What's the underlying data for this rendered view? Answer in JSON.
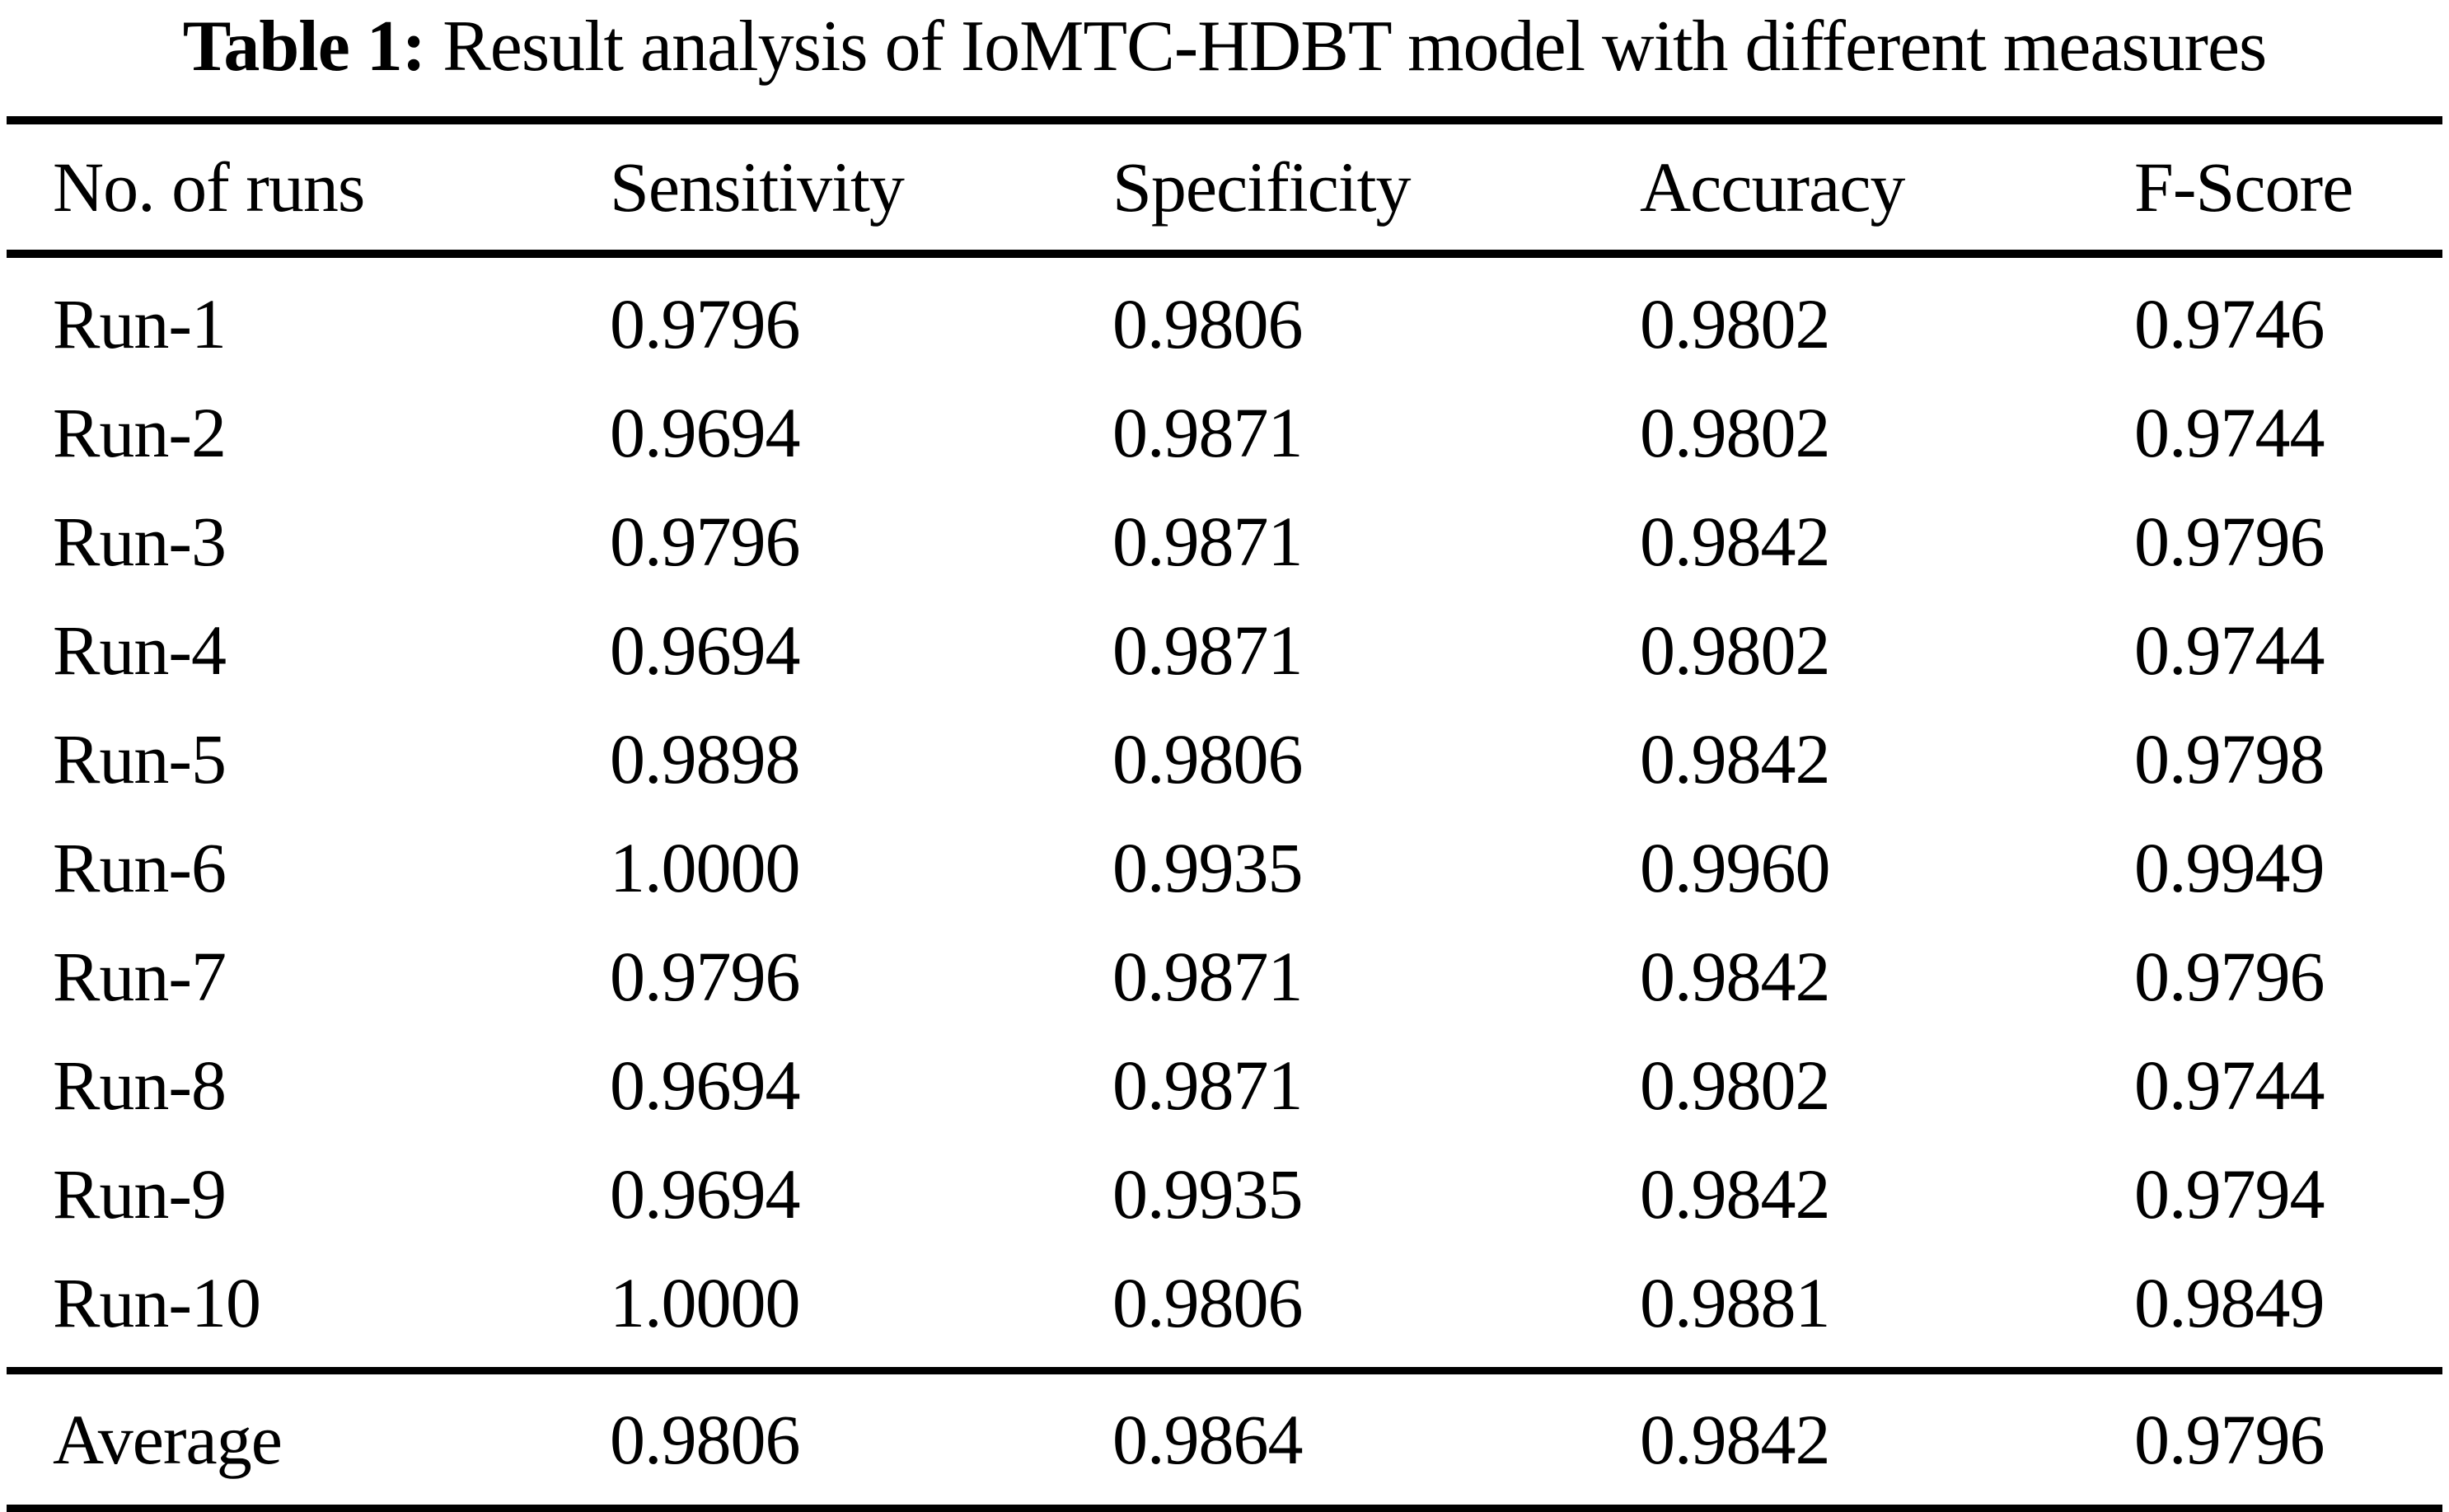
{
  "caption": {
    "label": "Table 1:",
    "text": "Result analysis of IoMTC-HDBT model with different measures"
  },
  "table": {
    "columns": [
      "No. of runs",
      "Sensitivity",
      "Specificity",
      "Accuracy",
      "F-Score"
    ],
    "rows": [
      [
        "Run-1",
        "0.9796",
        "0.9806",
        "0.9802",
        "0.9746"
      ],
      [
        "Run-2",
        "0.9694",
        "0.9871",
        "0.9802",
        "0.9744"
      ],
      [
        "Run-3",
        "0.9796",
        "0.9871",
        "0.9842",
        "0.9796"
      ],
      [
        "Run-4",
        "0.9694",
        "0.9871",
        "0.9802",
        "0.9744"
      ],
      [
        "Run-5",
        "0.9898",
        "0.9806",
        "0.9842",
        "0.9798"
      ],
      [
        "Run-6",
        "1.0000",
        "0.9935",
        "0.9960",
        "0.9949"
      ],
      [
        "Run-7",
        "0.9796",
        "0.9871",
        "0.9842",
        "0.9796"
      ],
      [
        "Run-8",
        "0.9694",
        "0.9871",
        "0.9802",
        "0.9744"
      ],
      [
        "Run-9",
        "0.9694",
        "0.9935",
        "0.9842",
        "0.9794"
      ],
      [
        "Run-10",
        "1.0000",
        "0.9806",
        "0.9881",
        "0.9849"
      ]
    ],
    "summary_row": [
      "Average",
      "0.9806",
      "0.9864",
      "0.9842",
      "0.9796"
    ]
  },
  "colors": {
    "text": "#000000",
    "background": "#ffffff",
    "rule": "#000000"
  }
}
